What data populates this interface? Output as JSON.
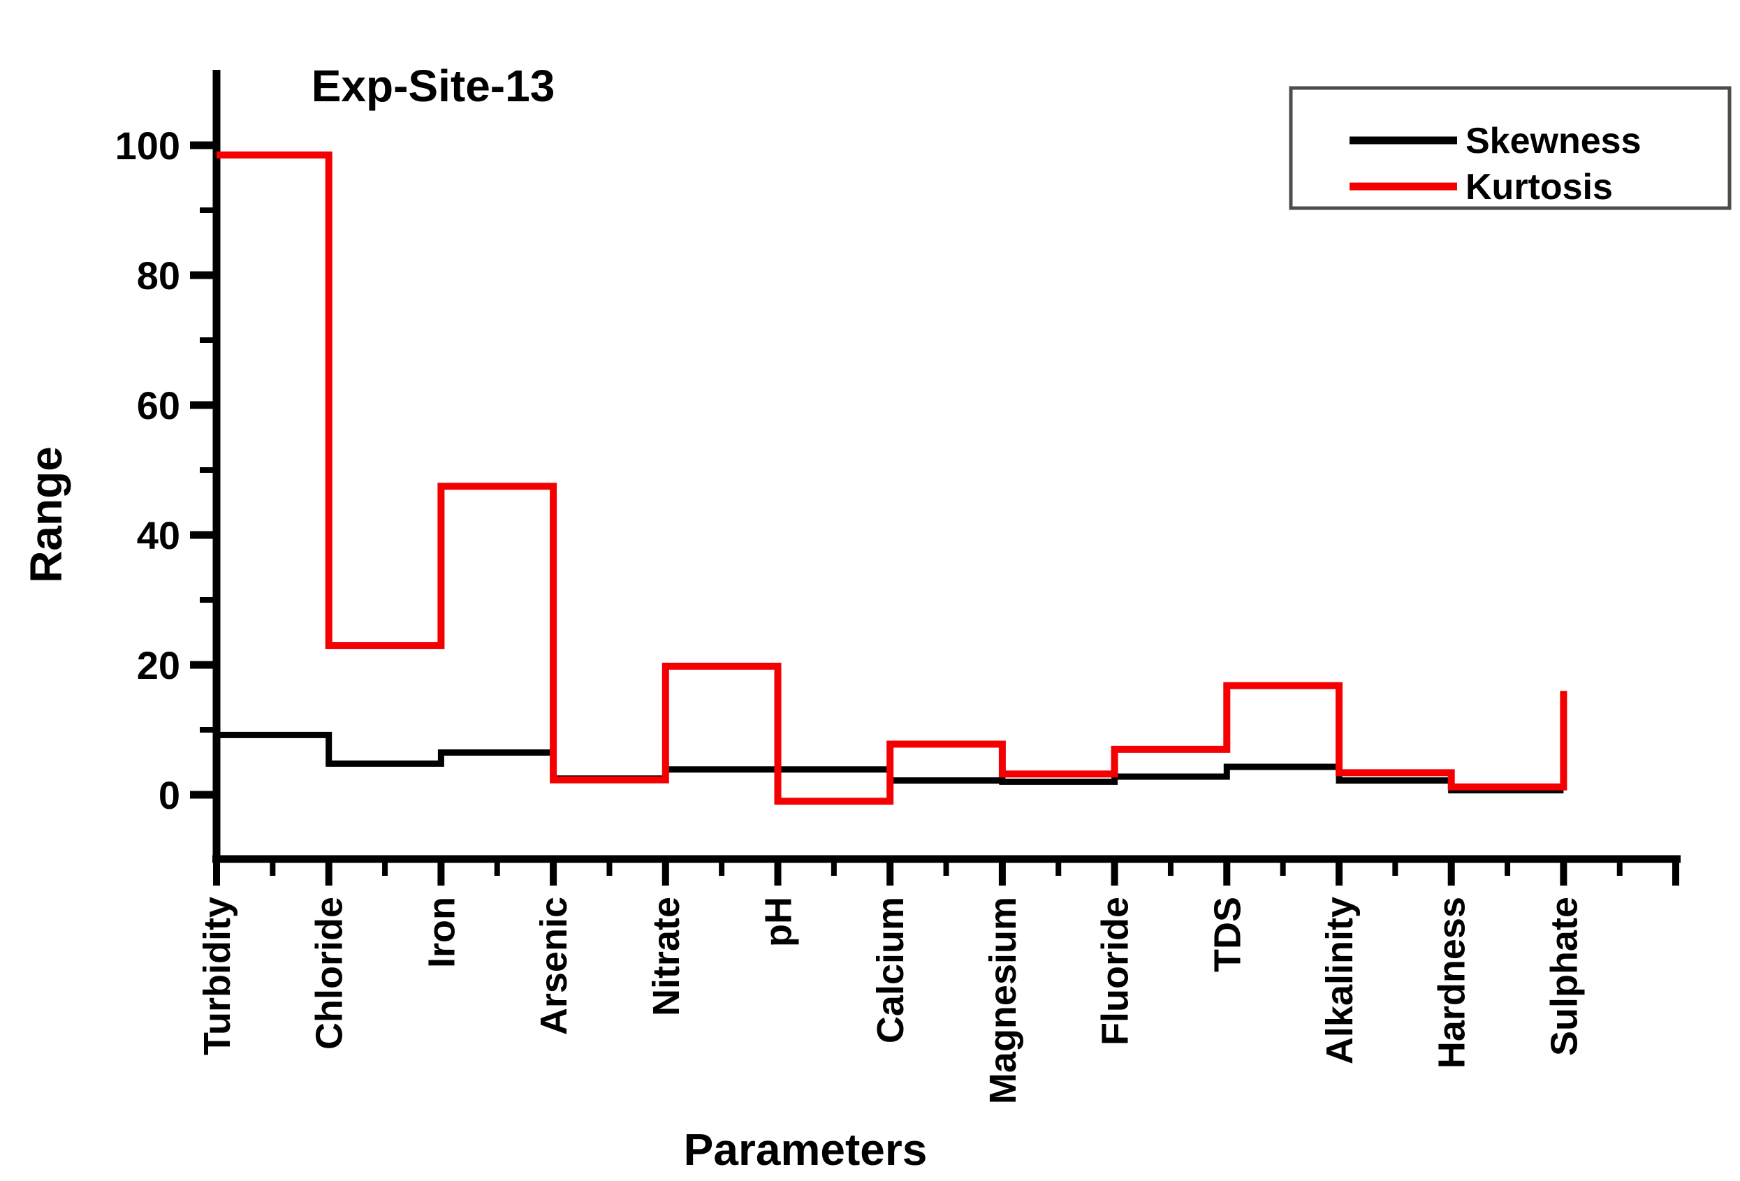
{
  "figure": {
    "background": "#ffffff",
    "axis_color": "#000000"
  },
  "chart_data": {
    "type": "line",
    "step_style": "post",
    "title": "Exp-Site-13",
    "xlabel": "Parameters",
    "ylabel": "Range",
    "categories": [
      "Turbidity",
      "Chloride",
      "Iron",
      "Arsenic",
      "Nitrate",
      "pH",
      "Calcium",
      "Magnesium",
      "Fluoride",
      "TDS",
      "Alkalinity",
      "Hardness",
      "Sulphate"
    ],
    "series": [
      {
        "name": "Skewness",
        "color": "#000000",
        "values": [
          9.2,
          4.8,
          6.5,
          2.5,
          3.9,
          3.9,
          2.2,
          2.0,
          2.8,
          4.3,
          2.2,
          0.7,
          0.7
        ]
      },
      {
        "name": "Kurtosis",
        "color": "#f40000",
        "values": [
          98.5,
          23,
          47.5,
          2.3,
          19.8,
          -1,
          7.8,
          3.2,
          7.0,
          16.8,
          3.4,
          1.2,
          16
        ]
      }
    ],
    "y_ticks_major": [
      0,
      20,
      40,
      60,
      80,
      100
    ],
    "y_ticks_minor": [
      10,
      30,
      50,
      70,
      90
    ],
    "ylim": [
      -10,
      111
    ],
    "grid": false,
    "legend_position": "top-right"
  },
  "legend": {
    "items": [
      {
        "label": "Skewness",
        "color": "#000000"
      },
      {
        "label": "Kurtosis",
        "color": "#f40000"
      }
    ]
  }
}
